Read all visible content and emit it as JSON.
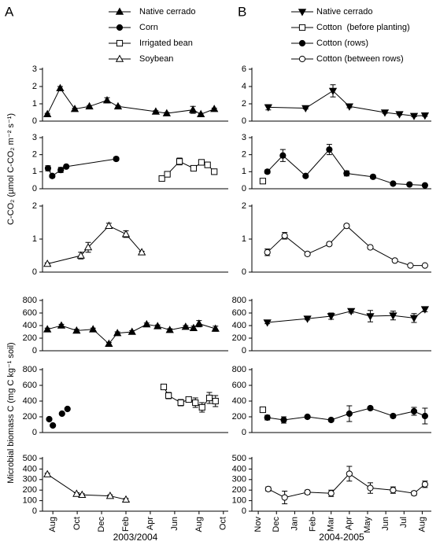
{
  "panel_labels": [
    "A",
    "B"
  ],
  "y_labels": [
    "C-CO₂ (µmol C-CO₂ m⁻² s⁻¹)",
    "Microbial biomass C (mg C kg⁻¹ soil)"
  ],
  "chart_data": [
    {
      "type": "line",
      "xlim": [
        -0.85,
        14.4
      ],
      "ylim": [
        0,
        3
      ],
      "yticks": [
        0,
        1,
        2,
        3
      ],
      "series": [
        {
          "name": "Native cerrado",
          "marker": "triangle-up",
          "filled": true,
          "color": "#000000",
          "x": [
            -0.45,
            0.6,
            1.8,
            3.0,
            4.45,
            5.35,
            8.45,
            9.35,
            11.5,
            12.15,
            13.25
          ],
          "values": [
            0.4,
            1.9,
            0.7,
            0.85,
            1.2,
            0.85,
            0.55,
            0.45,
            0.65,
            0.4,
            0.7
          ],
          "errors": [
            0.05,
            0.1,
            0.05,
            0.05,
            0.15,
            0.05,
            0.05,
            0.05,
            0.2,
            0.05,
            0.05
          ]
        }
      ]
    },
    {
      "type": "line",
      "xlim": [
        -0.35,
        9.5
      ],
      "ylim": [
        0,
        6
      ],
      "yticks": [
        0,
        2,
        4,
        6
      ],
      "series": [
        {
          "name": "Native cerrado",
          "marker": "triangle-down",
          "filled": true,
          "color": "#000000",
          "x": [
            0.55,
            2.6,
            4.1,
            5.0,
            6.95,
            7.75,
            8.55,
            9.15
          ],
          "values": [
            1.6,
            1.5,
            3.5,
            1.7,
            1.0,
            0.8,
            0.6,
            0.65
          ],
          "errors": [
            0.3,
            0.1,
            0.7,
            0.15,
            0.1,
            0.1,
            0.1,
            0.1
          ]
        }
      ]
    },
    {
      "type": "line",
      "xlim": [
        -0.85,
        14.4
      ],
      "ylim": [
        0,
        3
      ],
      "yticks": [
        0,
        1,
        2,
        3
      ],
      "series": [
        {
          "name": "Corn",
          "marker": "circle",
          "filled": true,
          "color": "#000000",
          "x": [
            -0.4,
            -0.05,
            0.65,
            1.1,
            5.2
          ],
          "values": [
            1.2,
            0.75,
            1.1,
            1.3,
            1.75
          ],
          "errors": [
            0.15,
            0.1,
            0.15,
            0.05,
            0.1
          ]
        },
        {
          "name": "Irrigated bean",
          "marker": "square",
          "filled": false,
          "color": "#000000",
          "x": [
            8.95,
            9.4,
            10.4,
            11.55,
            12.2,
            12.7,
            13.25
          ],
          "values": [
            0.6,
            0.85,
            1.6,
            1.2,
            1.55,
            1.4,
            1.0
          ],
          "errors": [
            0.1,
            0.1,
            0.2,
            0.1,
            0.15,
            0.15,
            0.15
          ]
        }
      ]
    },
    {
      "type": "line",
      "xlim": [
        -0.35,
        9.5
      ],
      "ylim": [
        0,
        3
      ],
      "yticks": [
        0,
        1,
        2,
        3
      ],
      "series": [
        {
          "name": "Cotton  (before planting)",
          "marker": "square",
          "filled": false,
          "color": "#000000",
          "x": [
            0.25
          ],
          "values": [
            0.45
          ],
          "errors": [
            0.1
          ]
        },
        {
          "name": "Cotton (rows)",
          "marker": "circle",
          "filled": true,
          "color": "#000000",
          "x": [
            0.5,
            1.35,
            2.6,
            3.9,
            4.85,
            6.3,
            7.4,
            8.3,
            9.15
          ],
          "values": [
            1.0,
            1.95,
            0.75,
            2.3,
            0.9,
            0.7,
            0.3,
            0.25,
            0.2
          ],
          "errors": [
            0.1,
            0.35,
            0.05,
            0.3,
            0.15,
            0.1,
            0.05,
            0.03,
            0.03
          ]
        }
      ]
    },
    {
      "type": "line",
      "xlim": [
        -0.85,
        14.4
      ],
      "ylim": [
        0,
        2
      ],
      "yticks": [
        0,
        1,
        2
      ],
      "series": [
        {
          "name": "Soybean",
          "marker": "triangle-up",
          "filled": false,
          "color": "#000000",
          "x": [
            -0.45,
            2.3,
            2.9,
            4.6,
            6.0,
            7.3
          ],
          "values": [
            0.25,
            0.5,
            0.75,
            1.4,
            1.15,
            0.6
          ],
          "errors": [
            0.03,
            0.1,
            0.15,
            0.08,
            0.1,
            0.03
          ]
        }
      ]
    },
    {
      "type": "line",
      "xlim": [
        -0.35,
        9.5
      ],
      "ylim": [
        0,
        2
      ],
      "yticks": [
        0,
        1,
        2
      ],
      "series": [
        {
          "name": "Cotton (between rows)",
          "marker": "circle",
          "filled": false,
          "color": "#000000",
          "x": [
            0.5,
            1.45,
            2.7,
            3.9,
            4.85,
            6.15,
            7.5,
            8.35,
            9.15
          ],
          "values": [
            0.6,
            1.1,
            0.55,
            0.85,
            1.4,
            0.75,
            0.35,
            0.2,
            0.2
          ],
          "errors": [
            0.1,
            0.1,
            0.05,
            0.05,
            0.05,
            0.05,
            0.03,
            0.02,
            0.02
          ]
        }
      ]
    },
    {
      "type": "line",
      "xlim": [
        -0.85,
        14.4
      ],
      "ylim": [
        0,
        800
      ],
      "yticks": [
        0,
        200,
        400,
        600,
        800
      ],
      "series": [
        {
          "name": "Native cerrado",
          "marker": "triangle-up",
          "filled": true,
          "color": "#000000",
          "x": [
            -0.45,
            0.7,
            1.95,
            3.3,
            4.6,
            5.3,
            6.5,
            7.7,
            8.6,
            9.6,
            10.9,
            11.55,
            12.0,
            13.35
          ],
          "values": [
            340,
            400,
            320,
            340,
            110,
            280,
            300,
            420,
            390,
            330,
            380,
            360,
            430,
            350
          ],
          "errors": [
            20,
            20,
            20,
            20,
            20,
            20,
            20,
            20,
            20,
            20,
            20,
            30,
            50,
            40
          ]
        }
      ]
    },
    {
      "type": "line",
      "xlim": [
        -0.35,
        9.5
      ],
      "ylim": [
        0,
        800
      ],
      "yticks": [
        0,
        200,
        400,
        600,
        800
      ],
      "series": [
        {
          "name": "Native cerrado",
          "marker": "triangle-down",
          "filled": true,
          "color": "#000000",
          "x": [
            0.5,
            2.7,
            4.0,
            5.1,
            6.15,
            7.4,
            8.55,
            9.15
          ],
          "values": [
            450,
            510,
            550,
            630,
            550,
            560,
            520,
            660
          ],
          "errors": [
            20,
            20,
            50,
            30,
            90,
            70,
            70,
            40
          ]
        }
      ]
    },
    {
      "type": "line",
      "xlim": [
        -0.85,
        14.4
      ],
      "ylim": [
        0,
        800
      ],
      "yticks": [
        0,
        200,
        400,
        600,
        800
      ],
      "series": [
        {
          "name": "Corn",
          "marker": "circle",
          "filled": true,
          "line": false,
          "color": "#000000",
          "x": [
            -0.3,
            0.0,
            0.75,
            1.2
          ],
          "values": [
            170,
            90,
            240,
            300
          ],
          "errors": [
            10,
            10,
            10,
            10
          ]
        },
        {
          "name": "Irrigated bean",
          "marker": "square",
          "filled": false,
          "color": "#000000",
          "x": [
            9.1,
            9.5,
            10.5,
            11.15,
            11.7,
            12.25,
            12.85,
            13.35
          ],
          "values": [
            580,
            470,
            380,
            420,
            380,
            320,
            440,
            400
          ],
          "errors": [
            20,
            40,
            40,
            30,
            60,
            60,
            70,
            70
          ]
        }
      ]
    },
    {
      "type": "line",
      "xlim": [
        -0.35,
        9.5
      ],
      "ylim": [
        0,
        800
      ],
      "yticks": [
        0,
        200,
        400,
        600,
        800
      ],
      "series": [
        {
          "name": "Cotton  (before planting)",
          "marker": "square",
          "filled": false,
          "color": "#000000",
          "x": [
            0.25
          ],
          "values": [
            290
          ],
          "errors": [
            20
          ]
        },
        {
          "name": "Cotton (rows)",
          "marker": "circle",
          "filled": true,
          "color": "#000000",
          "x": [
            0.5,
            1.4,
            2.7,
            4.0,
            5.0,
            6.15,
            7.4,
            8.55,
            9.15
          ],
          "values": [
            190,
            160,
            200,
            160,
            240,
            310,
            210,
            270,
            210
          ],
          "errors": [
            30,
            40,
            20,
            20,
            100,
            20,
            20,
            50,
            100
          ]
        }
      ]
    },
    {
      "type": "line",
      "xlim": [
        -0.85,
        14.4
      ],
      "ylim": [
        0,
        500
      ],
      "yticks": [
        0,
        100,
        200,
        300,
        400,
        500
      ],
      "xlabel": "2003/2004",
      "xticks": [
        {
          "value": 0,
          "label": "Aug"
        },
        {
          "value": 2,
          "label": "Oct"
        },
        {
          "value": 4,
          "label": "Dec"
        },
        {
          "value": 6,
          "label": "Feb"
        },
        {
          "value": 8,
          "label": "Apr"
        },
        {
          "value": 10,
          "label": "Jun"
        },
        {
          "value": 12,
          "label": "Aug"
        },
        {
          "value": 14,
          "label": "Oct"
        }
      ],
      "series": [
        {
          "name": "Soybean",
          "marker": "triangle-up",
          "filled": false,
          "color": "#000000",
          "x": [
            -0.45,
            1.95,
            2.4,
            4.7,
            6.0
          ],
          "values": [
            350,
            165,
            155,
            145,
            110
          ],
          "errors": [
            10,
            10,
            10,
            10,
            10
          ]
        }
      ]
    },
    {
      "type": "line",
      "xlim": [
        -0.35,
        9.5
      ],
      "ylim": [
        0,
        500
      ],
      "yticks": [
        0,
        100,
        200,
        300,
        400,
        500
      ],
      "xlabel": "2004-2005",
      "xticks": [
        {
          "value": 0,
          "label": "Nov"
        },
        {
          "value": 1,
          "label": "Dec"
        },
        {
          "value": 2,
          "label": "Jan"
        },
        {
          "value": 3,
          "label": "Feb"
        },
        {
          "value": 4,
          "label": "Mar"
        },
        {
          "value": 5,
          "label": "Apr"
        },
        {
          "value": 6,
          "label": "May"
        },
        {
          "value": 7,
          "label": "Jun"
        },
        {
          "value": 8,
          "label": "Jul"
        },
        {
          "value": 9,
          "label": "Aug"
        }
      ],
      "series": [
        {
          "name": "Cotton (between rows)",
          "marker": "circle",
          "filled": false,
          "color": "#000000",
          "x": [
            0.55,
            1.45,
            2.7,
            4.0,
            5.0,
            6.15,
            7.4,
            8.55,
            9.15
          ],
          "values": [
            210,
            130,
            180,
            170,
            355,
            220,
            200,
            170,
            255
          ],
          "errors": [
            20,
            60,
            20,
            30,
            70,
            50,
            30,
            20,
            30
          ]
        }
      ]
    }
  ]
}
